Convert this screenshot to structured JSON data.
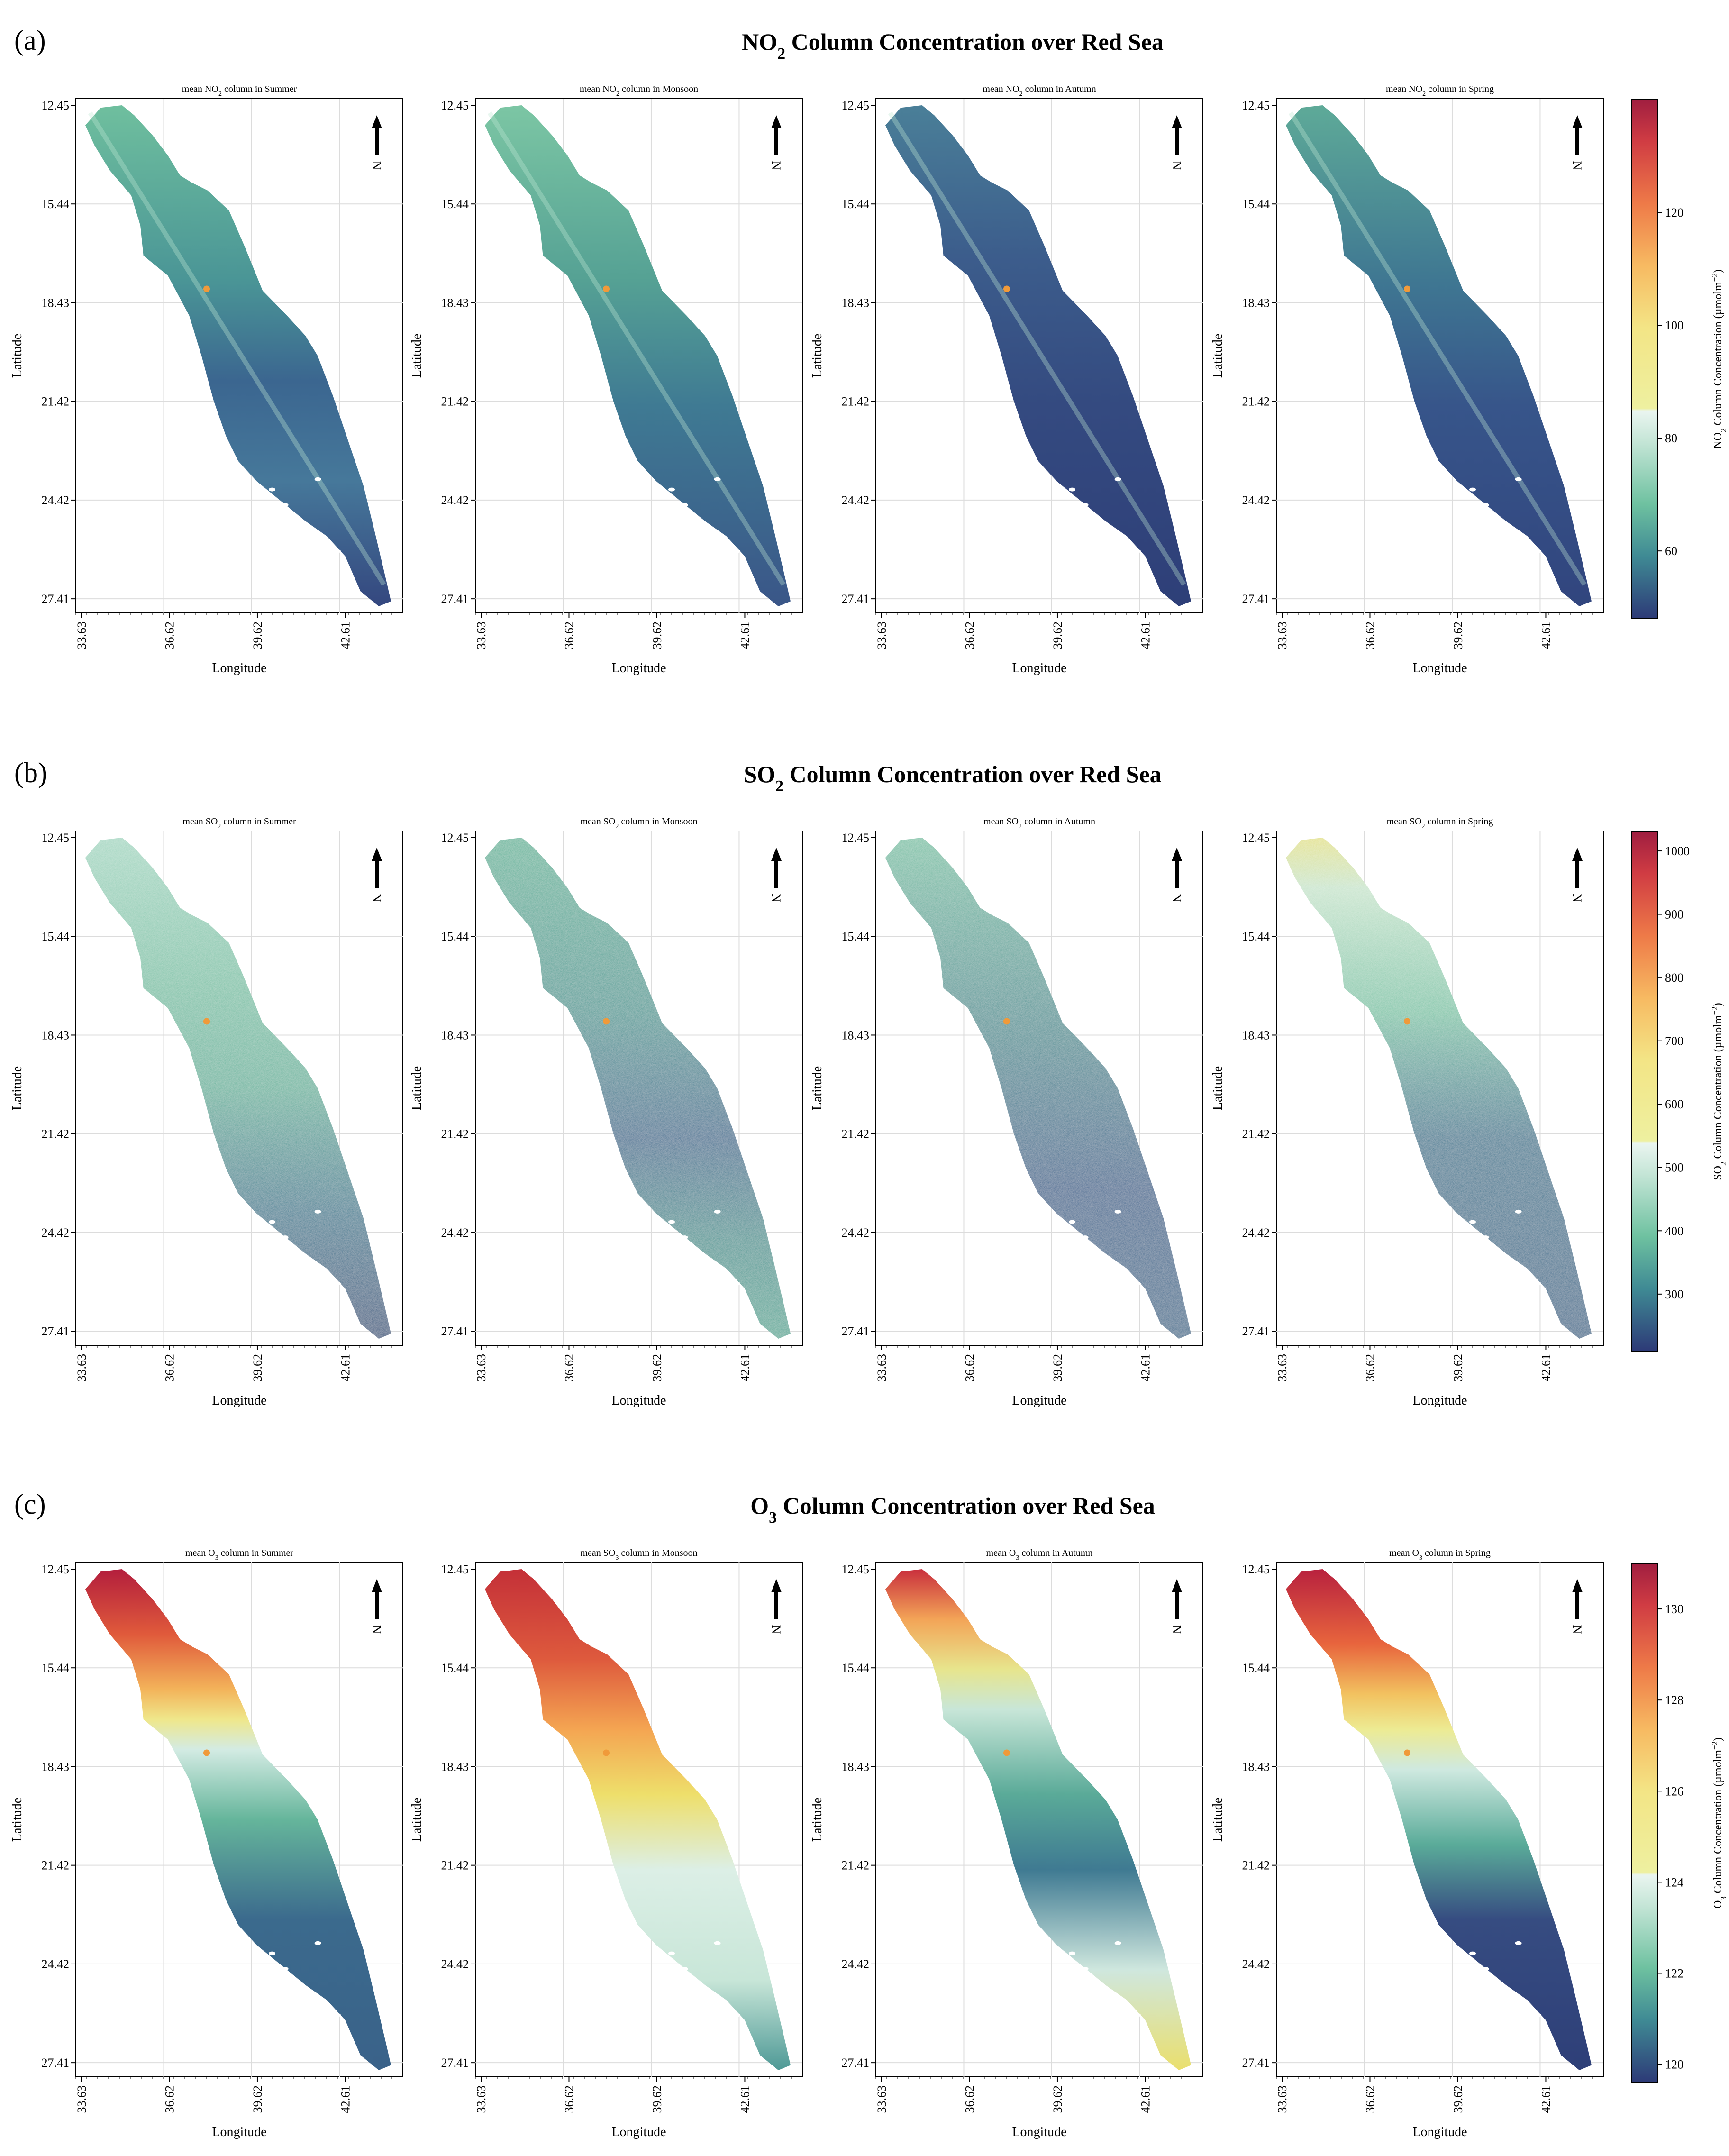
{
  "figure": {
    "sections": [
      {
        "label": "(a)",
        "title_pre": "NO",
        "title_sub": "2",
        "title_post": " Column Concentration over Red Sea",
        "panels": [
          {
            "pre": "mean NO",
            "sub": "2",
            "post": " column in Summer",
            "scheme": "no2_summer"
          },
          {
            "pre": "mean NO",
            "sub": "2",
            "post": " column in Monsoon",
            "scheme": "no2_monsoon"
          },
          {
            "pre": "mean NO",
            "sub": "2",
            "post": " column in Autumn",
            "scheme": "no2_autumn"
          },
          {
            "pre": "mean NO",
            "sub": "2",
            "post": " column in Spring",
            "scheme": "no2_spring"
          }
        ],
        "colorbar": {
          "label_pre": "NO",
          "label_sub": "2",
          "label_post": " Column Concentration (µmolm",
          "label_sup": "−2",
          "label_end": ")",
          "ticks": [
            "60",
            "80",
            "100",
            "120"
          ],
          "tick_values": [
            60,
            80,
            100,
            120
          ],
          "range": [
            48,
            140
          ],
          "split_value": 85
        }
      },
      {
        "label": "(b)",
        "title_pre": "SO",
        "title_sub": "2",
        "title_post": " Column Concentration over Red Sea",
        "panels": [
          {
            "pre": "mean SO",
            "sub": "2",
            "post": " column in Summer",
            "scheme": "so2_summer"
          },
          {
            "pre": "mean SO",
            "sub": "2",
            "post": " column in Monsoon",
            "scheme": "so2_monsoon"
          },
          {
            "pre": "mean SO",
            "sub": "2",
            "post": " column in Autumn",
            "scheme": "so2_autumn"
          },
          {
            "pre": "mean SO",
            "sub": "2",
            "post": " column in Spring",
            "scheme": "so2_spring"
          }
        ],
        "colorbar": {
          "label_pre": "SO",
          "label_sub": "2",
          "label_post": " Column Concentration (µmolm",
          "label_sup": "−2",
          "label_end": ")",
          "ticks": [
            "300",
            "400",
            "500",
            "600",
            "700",
            "800",
            "900",
            "1000"
          ],
          "tick_values": [
            300,
            400,
            500,
            600,
            700,
            800,
            900,
            1000
          ],
          "range": [
            210,
            1030
          ],
          "split_value": 545
        }
      },
      {
        "label": "(c)",
        "title_pre": "O",
        "title_sub": "3",
        "title_post": " Column Concentration over Red Sea",
        "panels": [
          {
            "pre": "mean O",
            "sub": "3",
            "post": " column in Summer",
            "scheme": "o3_summer"
          },
          {
            "pre": "mean SO",
            "sub": "3",
            "post": " column in Monsoon",
            "scheme": "o3_monsoon"
          },
          {
            "pre": "mean O",
            "sub": "3",
            "post": " column in Autumn",
            "scheme": "o3_autumn"
          },
          {
            "pre": "mean O",
            "sub": "3",
            "post": " column in Spring",
            "scheme": "o3_spring"
          }
        ],
        "colorbar": {
          "label_pre": "O",
          "label_sub": "3",
          "label_post": " Column Concentration (µmolm",
          "label_sup": "−2",
          "label_end": ")",
          "ticks": [
            "120",
            "122",
            "124",
            "126",
            "128",
            "130"
          ],
          "tick_values": [
            120,
            122,
            124,
            126,
            128,
            130
          ],
          "range": [
            119.6,
            131.0
          ],
          "split_value": 124.9
        }
      }
    ],
    "lat_ticks": [
      "12.45",
      "15.44",
      "18.43",
      "21.42",
      "24.42",
      "27.41"
    ],
    "lon_ticks": [
      "33.63",
      "36.62",
      "39.62",
      "42.61"
    ],
    "xlabel": "Longitude",
    "ylabel": "Latitude",
    "north_label": "N",
    "colors": {
      "sea_dark": "#35497f",
      "sea_mid": "#3e8f8d",
      "sea_green": "#5fb08f",
      "pale": "#e6f2ee",
      "yellow": "#ece56f",
      "orange": "#f08a45",
      "red": "#b4203d",
      "grid": "#dcdcdc",
      "spot": "#f09a3a"
    }
  }
}
